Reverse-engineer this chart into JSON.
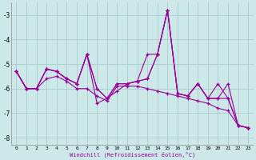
{
  "xlabel": "Windchill (Refroidissement éolien,°C)",
  "x": [
    0,
    1,
    2,
    3,
    4,
    5,
    6,
    7,
    8,
    9,
    10,
    11,
    12,
    13,
    14,
    15,
    16,
    17,
    18,
    19,
    20,
    21,
    22,
    23
  ],
  "series": [
    [
      -5.3,
      -6.0,
      -6.0,
      -5.2,
      -5.3,
      -5.6,
      -5.8,
      -4.6,
      -6.0,
      -6.4,
      -5.8,
      -5.8,
      -5.7,
      -5.6,
      -4.6,
      -2.8,
      -6.2,
      -6.3,
      -5.8,
      -6.4,
      -6.4,
      -5.8,
      -7.5,
      -7.6
    ],
    [
      -5.3,
      -6.0,
      -6.0,
      -5.2,
      -5.3,
      -5.6,
      -5.8,
      -4.6,
      -6.0,
      -6.4,
      -5.8,
      -5.8,
      -5.7,
      -5.6,
      -4.6,
      -2.8,
      -6.2,
      -6.3,
      -5.8,
      -6.4,
      -6.4,
      -6.4,
      -7.5,
      -7.6
    ],
    [
      -5.3,
      -6.0,
      -6.0,
      -5.2,
      -5.3,
      -5.6,
      -5.8,
      -4.6,
      -6.6,
      -6.4,
      -6.1,
      -5.8,
      -5.7,
      -4.6,
      -4.6,
      -2.8,
      -6.2,
      -6.3,
      -5.8,
      -6.4,
      -5.8,
      -6.4,
      -7.5,
      -7.6
    ],
    [
      -5.3,
      -6.0,
      -6.0,
      -5.6,
      -5.5,
      -5.7,
      -6.0,
      -6.0,
      -6.3,
      -6.5,
      -5.9,
      -5.9,
      -5.9,
      -6.0,
      -6.1,
      -6.2,
      -6.3,
      -6.4,
      -6.5,
      -6.6,
      -6.8,
      -6.9,
      -7.5,
      -7.6
    ]
  ],
  "line_color": "#990099",
  "bg_color": "#cce8e8",
  "grid_color": "#aacccc",
  "ylim": [
    -8.3,
    -2.5
  ],
  "yticks": [
    -8,
    -7,
    -6,
    -5,
    -4,
    -3
  ],
  "xlim": [
    -0.5,
    23.5
  ],
  "figsize": [
    3.2,
    2.0
  ],
  "dpi": 100
}
